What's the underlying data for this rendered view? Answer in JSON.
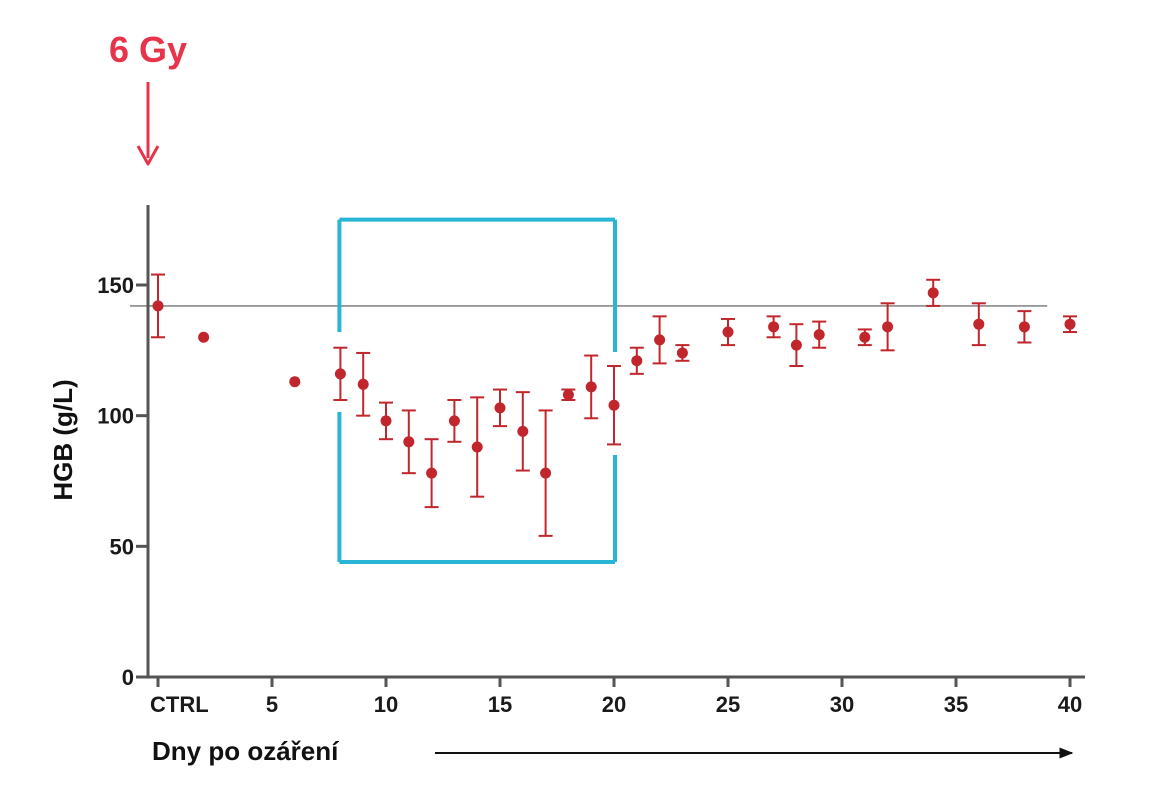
{
  "chart_data": {
    "type": "scatter",
    "title": "",
    "xlabel": "Dny po ozáření",
    "ylabel": "HGB (g/L)",
    "xlim": [
      -0.5,
      40.5
    ],
    "ylim": [
      0,
      180
    ],
    "grid": false,
    "y_ticks": [
      0,
      50,
      100,
      150
    ],
    "x_ticks": [
      {
        "x": 0,
        "label": "CTRL"
      },
      {
        "x": 5,
        "label": "5"
      },
      {
        "x": 10,
        "label": "10"
      },
      {
        "x": 15,
        "label": "15"
      },
      {
        "x": 20,
        "label": "20"
      },
      {
        "x": 25,
        "label": "25"
      },
      {
        "x": 30,
        "label": "30"
      },
      {
        "x": 35,
        "label": "35"
      },
      {
        "x": 40,
        "label": "40"
      }
    ],
    "reference_line": {
      "y": 142,
      "x_range": [
        -0.5,
        39
      ]
    },
    "highlight_box": {
      "x_range": [
        8,
        20
      ],
      "y_range": [
        44,
        175
      ],
      "color": "#29b6d6"
    },
    "annotation": {
      "text": "6 Gy",
      "color": "#e8344a",
      "points_to_x": 0
    },
    "series": [
      {
        "color": "#c0262c",
        "points": [
          {
            "x": 0,
            "y": 142,
            "err": 12
          },
          {
            "x": 2,
            "y": 130,
            "err": 0
          },
          {
            "x": 6,
            "y": 113,
            "err": 0
          },
          {
            "x": 8,
            "y": 116,
            "err": 10
          },
          {
            "x": 9,
            "y": 112,
            "err": 12
          },
          {
            "x": 10,
            "y": 98,
            "err": 7
          },
          {
            "x": 11,
            "y": 90,
            "err": 12
          },
          {
            "x": 12,
            "y": 78,
            "err": 13
          },
          {
            "x": 13,
            "y": 98,
            "err": 8
          },
          {
            "x": 14,
            "y": 88,
            "err": 19
          },
          {
            "x": 15,
            "y": 103,
            "err": 7
          },
          {
            "x": 16,
            "y": 94,
            "err": 15
          },
          {
            "x": 17,
            "y": 78,
            "err": 24
          },
          {
            "x": 18,
            "y": 108,
            "err": 2
          },
          {
            "x": 19,
            "y": 111,
            "err": 12
          },
          {
            "x": 20,
            "y": 104,
            "err": 15
          },
          {
            "x": 21,
            "y": 121,
            "err": 5
          },
          {
            "x": 22,
            "y": 129,
            "err": 9
          },
          {
            "x": 23,
            "y": 124,
            "err": 3
          },
          {
            "x": 25,
            "y": 132,
            "err": 5
          },
          {
            "x": 27,
            "y": 134,
            "err": 4
          },
          {
            "x": 28,
            "y": 127,
            "err": 8
          },
          {
            "x": 29,
            "y": 131,
            "err": 5
          },
          {
            "x": 31,
            "y": 130,
            "err": 3
          },
          {
            "x": 32,
            "y": 134,
            "err": 9
          },
          {
            "x": 34,
            "y": 147,
            "err": 5
          },
          {
            "x": 36,
            "y": 135,
            "err": 8
          },
          {
            "x": 38,
            "y": 134,
            "err": 6
          },
          {
            "x": 40,
            "y": 135,
            "err": 3
          }
        ]
      }
    ]
  }
}
